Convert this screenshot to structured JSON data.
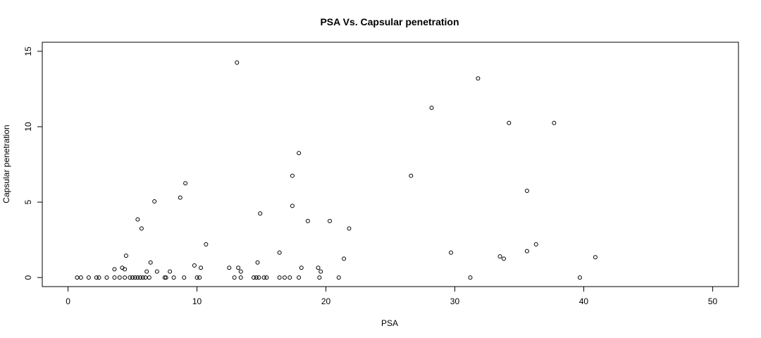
{
  "chart_data": {
    "type": "scatter",
    "title": "PSA Vs. Capsular penetration",
    "xlabel": "PSA",
    "ylabel": "Capsular penetration",
    "xlim": [
      -2,
      52
    ],
    "ylim": [
      -0.6,
      15.6
    ],
    "xticks": [
      0,
      10,
      20,
      30,
      40,
      50
    ],
    "yticks": [
      0,
      5,
      10,
      15
    ],
    "grid": false,
    "legend": "none",
    "points": [
      {
        "x": 0.7,
        "y": 0
      },
      {
        "x": 1.0,
        "y": 0
      },
      {
        "x": 1.6,
        "y": 0
      },
      {
        "x": 2.2,
        "y": 0
      },
      {
        "x": 2.4,
        "y": 0
      },
      {
        "x": 3.0,
        "y": 0
      },
      {
        "x": 3.6,
        "y": 0
      },
      {
        "x": 3.6,
        "y": 0.55
      },
      {
        "x": 4.0,
        "y": 0
      },
      {
        "x": 4.2,
        "y": 0.65
      },
      {
        "x": 4.4,
        "y": 0.55
      },
      {
        "x": 4.4,
        "y": 0
      },
      {
        "x": 4.5,
        "y": 1.45
      },
      {
        "x": 4.8,
        "y": 0
      },
      {
        "x": 5.0,
        "y": 0
      },
      {
        "x": 5.2,
        "y": 0
      },
      {
        "x": 5.4,
        "y": 0
      },
      {
        "x": 5.4,
        "y": 3.85
      },
      {
        "x": 5.6,
        "y": 0
      },
      {
        "x": 5.7,
        "y": 3.25
      },
      {
        "x": 5.8,
        "y": 0
      },
      {
        "x": 6.0,
        "y": 0
      },
      {
        "x": 6.1,
        "y": 0.4
      },
      {
        "x": 6.3,
        "y": 0
      },
      {
        "x": 6.4,
        "y": 1.0
      },
      {
        "x": 6.7,
        "y": 5.05
      },
      {
        "x": 6.9,
        "y": 0.4
      },
      {
        "x": 7.5,
        "y": 0
      },
      {
        "x": 7.6,
        "y": 0
      },
      {
        "x": 7.9,
        "y": 0.4
      },
      {
        "x": 8.2,
        "y": 0
      },
      {
        "x": 8.7,
        "y": 5.3
      },
      {
        "x": 9.0,
        "y": 0
      },
      {
        "x": 9.1,
        "y": 6.25
      },
      {
        "x": 9.8,
        "y": 0.8
      },
      {
        "x": 10.0,
        "y": 0
      },
      {
        "x": 10.2,
        "y": 0
      },
      {
        "x": 10.3,
        "y": 0.65
      },
      {
        "x": 10.7,
        "y": 2.2
      },
      {
        "x": 12.5,
        "y": 0.65
      },
      {
        "x": 12.9,
        "y": 0
      },
      {
        "x": 13.1,
        "y": 14.25
      },
      {
        "x": 13.2,
        "y": 0.65
      },
      {
        "x": 13.4,
        "y": 0.4
      },
      {
        "x": 13.4,
        "y": 0
      },
      {
        "x": 14.4,
        "y": 0
      },
      {
        "x": 14.6,
        "y": 0
      },
      {
        "x": 14.7,
        "y": 1.0
      },
      {
        "x": 14.8,
        "y": 0
      },
      {
        "x": 14.9,
        "y": 4.25
      },
      {
        "x": 15.2,
        "y": 0
      },
      {
        "x": 15.4,
        "y": 0
      },
      {
        "x": 16.4,
        "y": 1.65
      },
      {
        "x": 16.4,
        "y": 0
      },
      {
        "x": 16.8,
        "y": 0
      },
      {
        "x": 17.2,
        "y": 0
      },
      {
        "x": 17.4,
        "y": 6.75
      },
      {
        "x": 17.4,
        "y": 4.75
      },
      {
        "x": 17.9,
        "y": 0
      },
      {
        "x": 17.9,
        "y": 8.25
      },
      {
        "x": 18.1,
        "y": 0.65
      },
      {
        "x": 18.6,
        "y": 3.75
      },
      {
        "x": 19.4,
        "y": 0.65
      },
      {
        "x": 19.6,
        "y": 0.4
      },
      {
        "x": 19.5,
        "y": 0
      },
      {
        "x": 20.3,
        "y": 3.75
      },
      {
        "x": 21.0,
        "y": 0
      },
      {
        "x": 21.4,
        "y": 1.25
      },
      {
        "x": 21.8,
        "y": 3.25
      },
      {
        "x": 26.6,
        "y": 6.75
      },
      {
        "x": 28.2,
        "y": 11.25
      },
      {
        "x": 29.7,
        "y": 1.65
      },
      {
        "x": 31.2,
        "y": 0
      },
      {
        "x": 31.8,
        "y": 13.2
      },
      {
        "x": 33.5,
        "y": 1.4
      },
      {
        "x": 33.8,
        "y": 1.25
      },
      {
        "x": 34.2,
        "y": 10.25
      },
      {
        "x": 35.6,
        "y": 5.75
      },
      {
        "x": 35.6,
        "y": 1.75
      },
      {
        "x": 36.3,
        "y": 2.2
      },
      {
        "x": 37.7,
        "y": 10.25
      },
      {
        "x": 39.7,
        "y": 0
      },
      {
        "x": 40.9,
        "y": 1.35
      }
    ]
  }
}
